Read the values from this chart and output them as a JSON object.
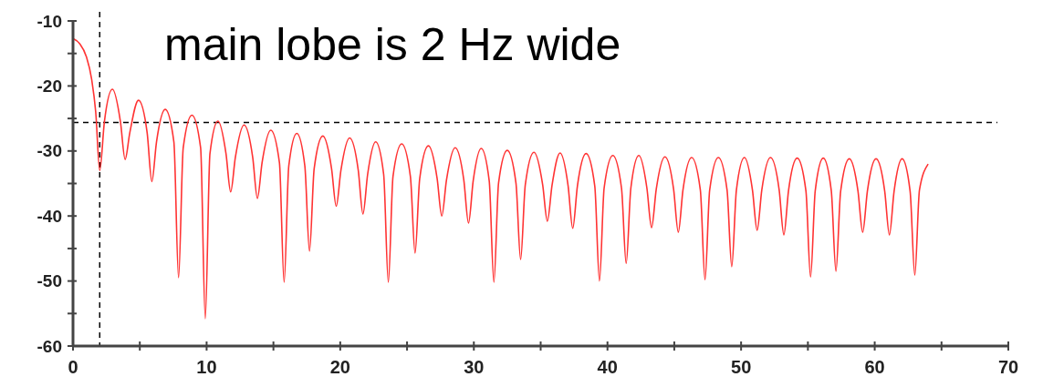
{
  "chart_data": {
    "type": "line",
    "title": "main lobe is 2 Hz wide",
    "x": [
      0,
      0.5,
      1.0,
      1.4,
      1.7,
      2.0,
      2.35,
      2.95,
      3.55,
      3.9,
      4.25,
      4.9,
      5.55,
      5.9,
      6.25,
      6.9,
      7.55,
      7.9,
      8.25,
      8.9,
      9.55,
      9.9,
      10.25,
      10.85,
      11.45,
      11.8,
      12.15,
      12.8,
      13.45,
      13.8,
      14.15,
      14.8,
      15.45,
      15.8,
      16.15,
      16.75,
      17.35,
      17.7,
      18.05,
      18.7,
      19.35,
      19.7,
      20.05,
      20.7,
      21.35,
      21.7,
      22.05,
      22.65,
      23.25,
      23.6,
      23.95,
      24.6,
      25.25,
      25.6,
      25.95,
      26.6,
      27.25,
      27.6,
      27.95,
      28.6,
      29.25,
      29.6,
      29.95,
      30.55,
      31.15,
      31.5,
      31.85,
      32.5,
      33.15,
      33.5,
      33.85,
      34.5,
      35.15,
      35.5,
      35.85,
      36.45,
      37.05,
      37.4,
      37.75,
      38.4,
      39.05,
      39.4,
      39.75,
      40.4,
      41.05,
      41.4,
      41.75,
      42.35,
      42.95,
      43.3,
      43.65,
      44.3,
      44.95,
      45.3,
      45.65,
      46.3,
      46.95,
      47.3,
      47.65,
      48.3,
      48.95,
      49.3,
      49.65,
      50.25,
      50.85,
      51.2,
      51.55,
      52.2,
      52.85,
      53.2,
      53.55,
      54.2,
      54.85,
      55.2,
      55.55,
      56.15,
      56.75,
      57.1,
      57.45,
      58.1,
      58.75,
      59.1,
      59.45,
      60.1,
      60.75,
      61.1,
      61.45,
      62.05,
      62.65,
      63.0,
      63.35,
      64.0
    ],
    "series": [
      {
        "color": "#ff3333",
        "values": [
          -12.7,
          -13.5,
          -15.5,
          -19,
          -24,
          -33,
          -25.5,
          -20.5,
          -25.5,
          -31.3,
          -27.2,
          -22.2,
          -27.2,
          -34.7,
          -28.6,
          -23.6,
          -28.6,
          -49.5,
          -29.5,
          -24.5,
          -29.5,
          -55.8,
          -30.4,
          -25.4,
          -30.4,
          -36.3,
          -31,
          -26,
          -31,
          -37.3,
          -31.8,
          -26.8,
          -31.8,
          -50.2,
          -32.3,
          -27.3,
          -32.3,
          -45.4,
          -32.7,
          -27.7,
          -32.7,
          -38.5,
          -33,
          -28,
          -33,
          -39.7,
          -33.6,
          -28.6,
          -33.6,
          -50.2,
          -33.9,
          -28.9,
          -33.9,
          -45.7,
          -34.2,
          -29.2,
          -34.2,
          -40,
          -34.5,
          -29.5,
          -34.5,
          -41.1,
          -34.6,
          -29.6,
          -34.6,
          -50.2,
          -34.9,
          -29.9,
          -34.9,
          -46.7,
          -35.2,
          -30.2,
          -35.2,
          -40.8,
          -35.3,
          -30.3,
          -35.3,
          -41.9,
          -35.4,
          -30.4,
          -35.4,
          -50,
          -35.7,
          -30.7,
          -35.7,
          -47.3,
          -35.7,
          -30.7,
          -35.7,
          -41.8,
          -35.9,
          -30.9,
          -35.9,
          -42.5,
          -36,
          -31,
          -36,
          -49.8,
          -36,
          -31,
          -36,
          -47.8,
          -36,
          -31,
          -36,
          -42.2,
          -36,
          -31,
          -36,
          -42.9,
          -36.1,
          -31.1,
          -36.1,
          -49.4,
          -36.1,
          -31.1,
          -36.1,
          -48.5,
          -36.2,
          -31.2,
          -36.2,
          -42.5,
          -36.2,
          -31.2,
          -36.2,
          -42.9,
          -36.2,
          -31.2,
          -36.2,
          -49.1,
          -36,
          -32
        ]
      }
    ],
    "xlim": [
      0,
      70
    ],
    "ylim": [
      -60,
      -10
    ],
    "xticks": [
      0,
      {
        "value": 5,
        "label": null
      },
      10,
      {
        "value": 15,
        "label": null
      },
      20,
      {
        "value": 25,
        "label": null
      },
      30,
      {
        "value": 35,
        "label": null
      },
      40,
      {
        "value": 45,
        "label": null
      },
      50,
      {
        "value": 55,
        "label": null
      },
      60,
      {
        "value": 65,
        "label": null
      },
      70
    ],
    "yticks": [
      -60,
      {
        "value": -55,
        "label": null
      },
      -50,
      {
        "value": -45,
        "label": null
      },
      -40,
      {
        "value": -35,
        "label": null
      },
      -30,
      {
        "value": -25,
        "label": null
      },
      -20,
      {
        "value": -15,
        "label": null
      },
      -10
    ],
    "ref_lines": [
      {
        "axis": "x",
        "value": 2,
        "line_style": "dashed",
        "color": "#000000"
      },
      {
        "axis": "y",
        "value": -25.6,
        "line_style": "dashed",
        "color": "#000000"
      }
    ],
    "grid": false,
    "marker": "none",
    "line_style": "solid"
  }
}
